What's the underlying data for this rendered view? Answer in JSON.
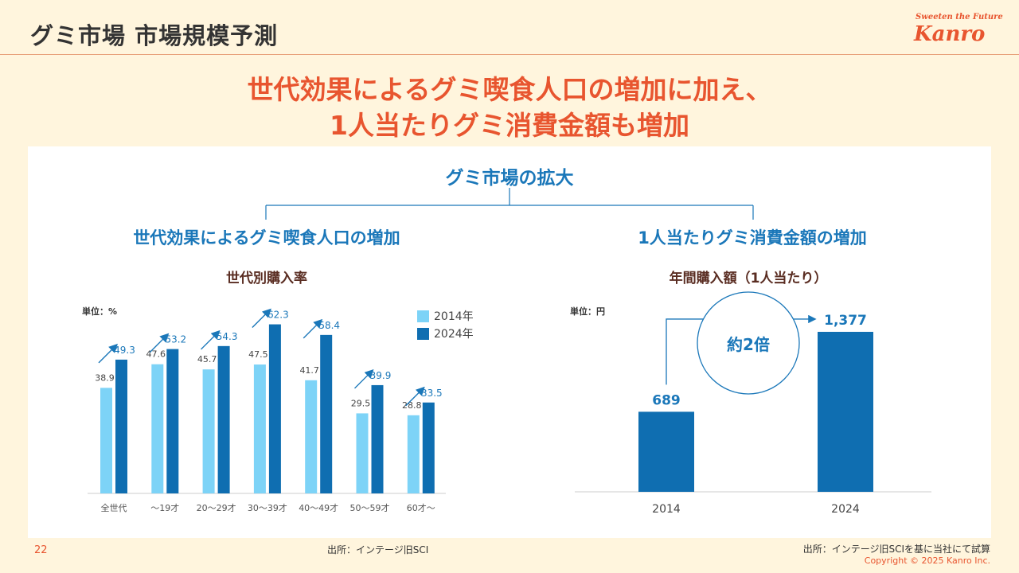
{
  "header": {
    "title": "グミ市場 市場規模予測",
    "brand_tagline": "Sweeten the Future",
    "brand_logo": "Kanro"
  },
  "headline": {
    "line1": "世代効果によるグミ喫食人口の増加に加え、",
    "line2": "1人当たりグミ消費金額も増加"
  },
  "tree": {
    "root": "グミ市場の拡大",
    "left_branch": "世代効果によるグミ喫食人口の増加",
    "right_branch": "1人当たりグミ消費金額の増加"
  },
  "chart_data": [
    {
      "type": "bar",
      "title": "世代別購入率",
      "unit_label": "単位：%",
      "categories": [
        "全世代",
        "〜19才",
        "20〜29才",
        "30〜39才",
        "40〜49才",
        "50〜59才",
        "60才〜"
      ],
      "series": [
        {
          "name": "2014年",
          "color": "#7dd3f7",
          "values": [
            38.9,
            47.6,
            45.7,
            47.5,
            41.7,
            29.5,
            28.8
          ]
        },
        {
          "name": "2024年",
          "color": "#0f6eb1",
          "values": [
            49.3,
            53.2,
            54.3,
            62.3,
            58.4,
            39.9,
            33.5
          ]
        }
      ],
      "ylim": [
        0,
        70
      ],
      "legend": "top-right",
      "trend_arrows": true
    },
    {
      "type": "bar",
      "title": "年間購入額（1人当たり）",
      "unit_label": "単位：円",
      "categories": [
        "2014",
        "2024"
      ],
      "values": [
        689,
        1377
      ],
      "value_labels": [
        "689",
        "1,377"
      ],
      "color": "#0f6eb1",
      "ylim": [
        0,
        1800
      ],
      "annotation": "約2倍"
    }
  ],
  "footer": {
    "page_number": "22",
    "source_left": "出所：インテージ旧SCI",
    "source_right": "出所：インテージ旧SCIを基に当社にて試算",
    "copyright": "Copyright © 2025  Kanro Inc."
  }
}
